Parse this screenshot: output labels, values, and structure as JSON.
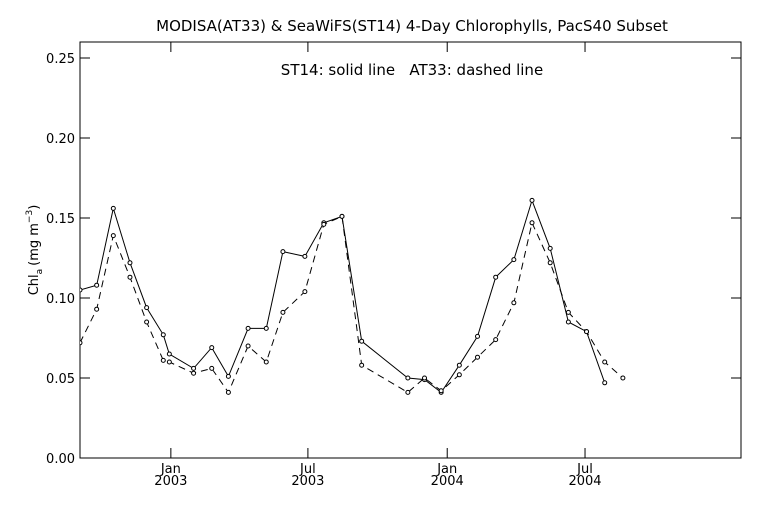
{
  "chart_data": {
    "type": "line",
    "title": "MODISA(AT33) & SeaWiFS(ST14) 4-Day Chlorophylls, PacS40 Subset",
    "annotation": "ST14: solid line   AT33: dashed line",
    "ylabel": "Chl_a (mg m^-3)",
    "ylabel_parts": {
      "base": "Chl",
      "sub": "a",
      "units_open": "(mg m",
      "sup": "−3",
      "units_close": ")"
    },
    "xlabel": "",
    "ylim": [
      0,
      0.26
    ],
    "xlim": [
      "2002-09-03",
      "2005-01-23"
    ],
    "grid": false,
    "y_ticks": [
      {
        "value": 0.0,
        "label": "0.00"
      },
      {
        "value": 0.05,
        "label": "0.05"
      },
      {
        "value": 0.1,
        "label": "0.10"
      },
      {
        "value": 0.15,
        "label": "0.15"
      },
      {
        "value": 0.2,
        "label": "0.20"
      },
      {
        "value": 0.25,
        "label": "0.25"
      }
    ],
    "x_ticks": [
      {
        "date": "2003-01-01",
        "line1": "Jan",
        "line2": "2003"
      },
      {
        "date": "2003-07-01",
        "line1": "Jul",
        "line2": "2003"
      },
      {
        "date": "2004-01-01",
        "line1": "Jan",
        "line2": "2004"
      },
      {
        "date": "2004-07-01",
        "line1": "Jul",
        "line2": "2004"
      }
    ],
    "series": [
      {
        "name": "ST14",
        "style": "solid",
        "color": "#000000",
        "points": [
          [
            "2002-09-03",
            0.105
          ],
          [
            "2002-09-25",
            0.108
          ],
          [
            "2002-10-17",
            0.156
          ],
          [
            "2002-11-08",
            0.122
          ],
          [
            "2002-11-30",
            0.094
          ],
          [
            "2002-12-22",
            0.077
          ],
          [
            "2002-12-30",
            0.065
          ],
          [
            "2003-01-31",
            0.056
          ],
          [
            "2003-02-24",
            0.069
          ],
          [
            "2003-03-18",
            0.051
          ],
          [
            "2003-04-13",
            0.081
          ],
          [
            "2003-05-07",
            0.081
          ],
          [
            "2003-05-29",
            0.129
          ],
          [
            "2003-06-27",
            0.126
          ],
          [
            "2003-07-22",
            0.147
          ],
          [
            "2003-08-15",
            0.151
          ],
          [
            "2003-09-10",
            0.073
          ],
          [
            "2003-11-10",
            0.05
          ],
          [
            "2003-12-02",
            0.049
          ],
          [
            "2003-12-24",
            0.041
          ],
          [
            "2004-01-17",
            0.058
          ],
          [
            "2004-02-10",
            0.076
          ],
          [
            "2004-03-05",
            0.113
          ],
          [
            "2004-03-29",
            0.124
          ],
          [
            "2004-04-22",
            0.161
          ],
          [
            "2004-05-16",
            0.131
          ],
          [
            "2004-06-09",
            0.085
          ],
          [
            "2004-07-03",
            0.079
          ],
          [
            "2004-07-27",
            0.047
          ]
        ]
      },
      {
        "name": "AT33",
        "style": "dashed",
        "color": "#000000",
        "points": [
          [
            "2002-09-03",
            0.072
          ],
          [
            "2002-09-25",
            0.093
          ],
          [
            "2002-10-17",
            0.139
          ],
          [
            "2002-11-08",
            0.113
          ],
          [
            "2002-11-30",
            0.085
          ],
          [
            "2002-12-22",
            0.061
          ],
          [
            "2002-12-30",
            0.06
          ],
          [
            "2003-01-31",
            0.053
          ],
          [
            "2003-02-24",
            0.056
          ],
          [
            "2003-03-18",
            0.041
          ],
          [
            "2003-04-13",
            0.07
          ],
          [
            "2003-05-07",
            0.06
          ],
          [
            "2003-05-29",
            0.091
          ],
          [
            "2003-06-27",
            0.104
          ],
          [
            "2003-07-22",
            0.146
          ],
          [
            "2003-08-15",
            0.151
          ],
          [
            "2003-09-10",
            0.058
          ],
          [
            "2003-11-10",
            0.041
          ],
          [
            "2003-12-02",
            0.05
          ],
          [
            "2003-12-24",
            0.042
          ],
          [
            "2004-01-17",
            0.052
          ],
          [
            "2004-02-10",
            0.063
          ],
          [
            "2004-03-05",
            0.074
          ],
          [
            "2004-03-29",
            0.097
          ],
          [
            "2004-04-22",
            0.147
          ],
          [
            "2004-05-16",
            0.122
          ],
          [
            "2004-06-09",
            0.091
          ],
          [
            "2004-07-03",
            0.079
          ],
          [
            "2004-07-27",
            0.06
          ],
          [
            "2004-08-20",
            0.05
          ]
        ]
      }
    ]
  }
}
